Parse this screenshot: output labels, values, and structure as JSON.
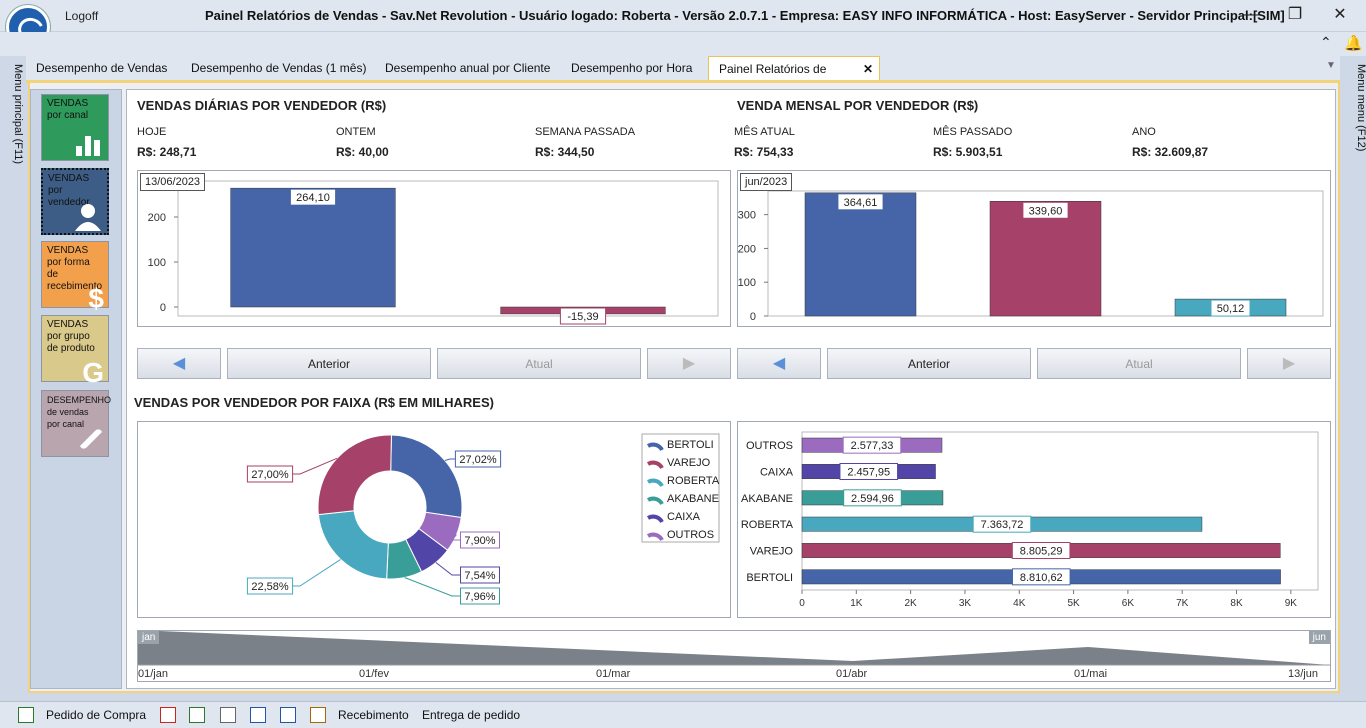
{
  "window": {
    "title": "Painel Relatórios de Vendas - Sav.Net Revolution - Usuário logado: Roberta - Versão 2.0.7.1 - Empresa: EASY INFO INFORMÁTICA - Host: EasyServer - Servidor Principal:[SIM]",
    "logoff": "Logoff"
  },
  "side": {
    "left": "Menu principal (F11)",
    "right": "Menu menu (F12)"
  },
  "tabs": [
    "Desempenho de Vendas",
    "Desempenho de Vendas (1 mês)",
    "Desempenho anual por Cliente",
    "Desempenho por Hora",
    "Painel Relatórios de Vendas"
  ],
  "tiles": [
    {
      "line1": "VENDAS",
      "line2": "por canal",
      "color": "#2e9b5c"
    },
    {
      "line1": "VENDAS",
      "line2": "por vendedor",
      "color": "#3d5d86"
    },
    {
      "line1": "VENDAS",
      "line2": "por forma de recebimento",
      "color": "#f2a04c",
      "glyph": "$"
    },
    {
      "line1": "VENDAS",
      "line2": "por grupo de produto",
      "color": "#d9c98a",
      "glyph": "G"
    },
    {
      "line1": "DESEMPENHO",
      "line2": "de vendas por canal",
      "color": "#b9a5ae"
    }
  ],
  "daily": {
    "title": "VENDAS DIÁRIAS POR VENDEDOR (R$)",
    "kpis": [
      {
        "label": "HOJE",
        "value": "R$: 248,71"
      },
      {
        "label": "ONTEM",
        "value": "R$: 40,00"
      },
      {
        "label": "SEMANA PASSADA",
        "value": "R$: 344,50"
      }
    ],
    "date": "13/06/2023",
    "nav": {
      "prev": "Anterior",
      "current": "Atual"
    }
  },
  "monthly": {
    "title": "VENDA MENSAL POR VENDEDOR (R$)",
    "kpis": [
      {
        "label": "MÊS ATUAL",
        "value": "R$: 754,33"
      },
      {
        "label": "MÊS PASSADO",
        "value": "R$: 5.903,51"
      },
      {
        "label": "ANO",
        "value": "R$: 32.609,87"
      }
    ],
    "date": "jun/2023",
    "nav": {
      "prev": "Anterior",
      "current": "Atual"
    }
  },
  "faixa": {
    "title": "VENDAS POR VENDEDOR POR FAIXA (R$ EM MILHARES)"
  },
  "timeline": {
    "start": "jan",
    "end": "jun",
    "ticks": [
      "01/jan",
      "01/fev",
      "01/mar",
      "01/abr",
      "01/mai",
      "13/jun"
    ]
  },
  "statusbar": {
    "pedido": "Pedido de Compra",
    "recebimento": "Recebimento",
    "entrega": "Entrega de pedido"
  },
  "chart_data": [
    {
      "type": "bar",
      "name": "daily",
      "ylim": [
        -20,
        280
      ],
      "yticks": [
        0,
        100,
        200
      ],
      "values": [
        264.1,
        -15.39
      ],
      "labels": [
        "264,10",
        "-15,39"
      ],
      "colors": [
        "#4565a8",
        "#a6426a"
      ]
    },
    {
      "type": "bar",
      "name": "monthly",
      "ylim": [
        0,
        370
      ],
      "yticks": [
        0,
        100,
        200,
        300
      ],
      "values": [
        364.61,
        339.6,
        50.12
      ],
      "labels": [
        "364,61",
        "339,60",
        "50,12"
      ],
      "colors": [
        "#4565a8",
        "#a6426a",
        "#47a8bf"
      ]
    },
    {
      "type": "pie",
      "series": [
        {
          "name": "BERTOLI",
          "value": 27.02,
          "label": "27,02%",
          "color": "#4565a8"
        },
        {
          "name": "VAREJO",
          "value": 27.0,
          "label": "27,00%",
          "color": "#a6426a"
        },
        {
          "name": "ROBERTA",
          "value": 22.58,
          "label": "22,58%",
          "color": "#47a8bf"
        },
        {
          "name": "AKABANE",
          "value": 7.96,
          "label": "7,96%",
          "color": "#3a9e98"
        },
        {
          "name": "CAIXA",
          "value": 7.54,
          "label": "7,54%",
          "color": "#5146a7"
        },
        {
          "name": "OUTROS",
          "value": 7.9,
          "label": "7,90%",
          "color": "#9b6bbf"
        }
      ]
    },
    {
      "type": "bar",
      "orientation": "horizontal",
      "categories": [
        "OUTROS",
        "CAIXA",
        "AKABANE",
        "ROBERTA",
        "VAREJO",
        "BERTOLI"
      ],
      "values": [
        2577.33,
        2457.95,
        2594.96,
        7363.72,
        8805.29,
        8810.62
      ],
      "labels": [
        "2.577,33",
        "2.457,95",
        "2.594,96",
        "7.363,72",
        "8.805,29",
        "8.810,62"
      ],
      "colors": [
        "#9b6bbf",
        "#5146a7",
        "#3a9e98",
        "#47a8bf",
        "#a6426a",
        "#4565a8"
      ],
      "xlim": [
        0,
        9500
      ],
      "xticks": [
        "0",
        "1K",
        "2K",
        "3K",
        "4K",
        "5K",
        "6K",
        "7K",
        "8K",
        "9K"
      ]
    }
  ]
}
